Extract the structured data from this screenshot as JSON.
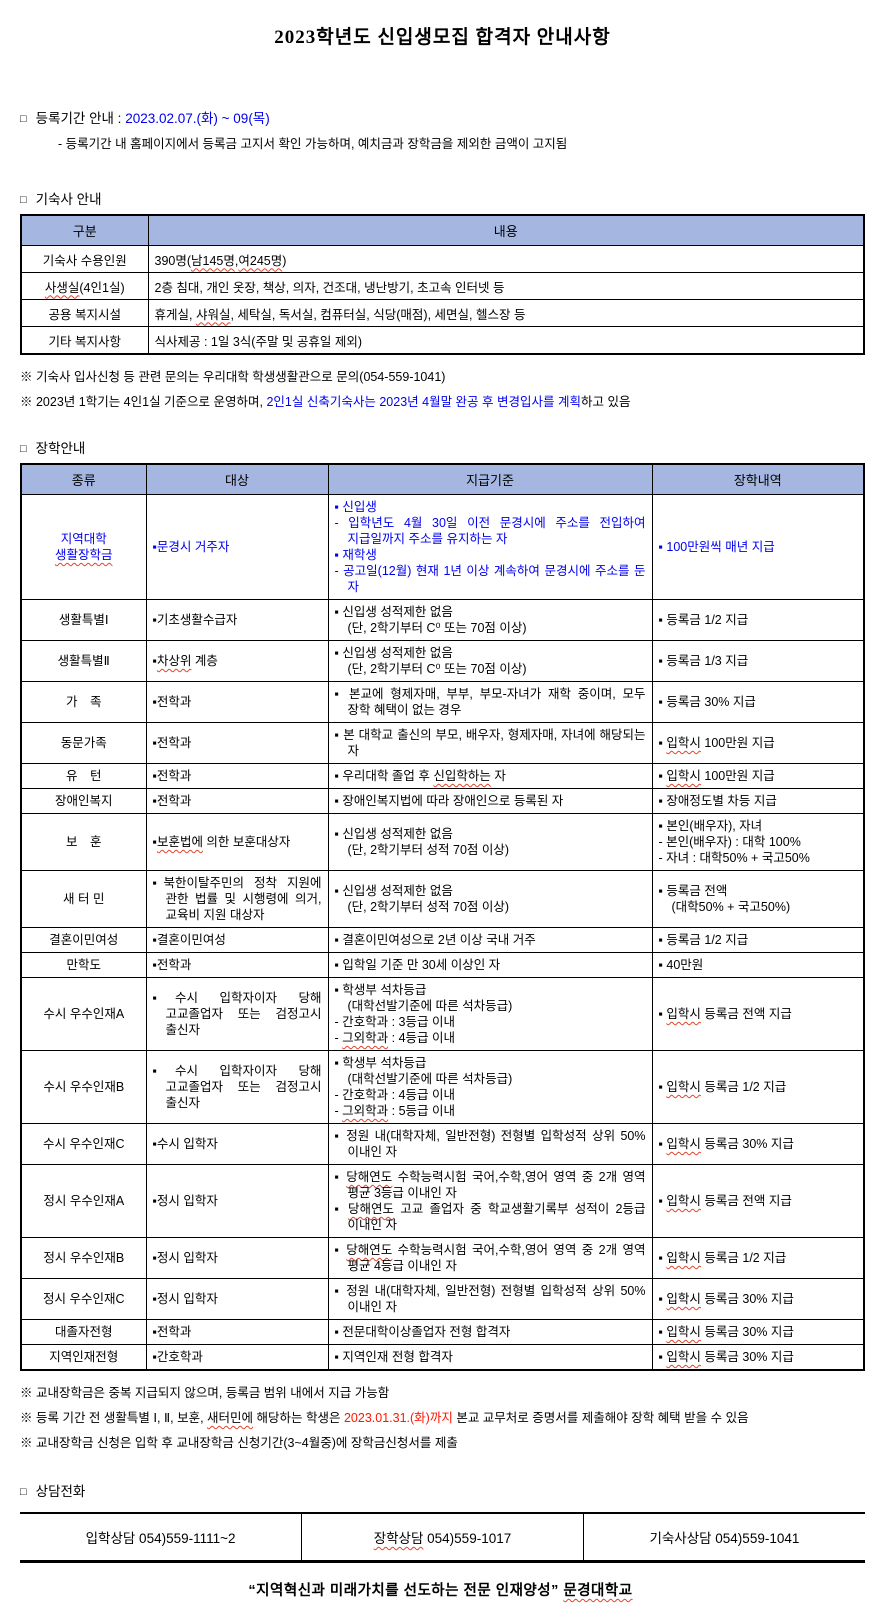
{
  "title": "2023학년도 신입생모집 합격자 안내사항",
  "glyphs": {
    "square": "□"
  },
  "registration": {
    "heading_label": "등록기간 안내 : ",
    "period": "2023.02.07.(화) ~ 09(목)",
    "subnote": "- 등록기간 내 홈페이지에서 등록금 고지서 확인 가능하며, 예치금과 장학금을 제외한 금액이 고지됨"
  },
  "dormitory": {
    "heading": "기숙사 안내",
    "table": {
      "headers": [
        "구분",
        "내용"
      ],
      "rows": [
        [
          "기숙사 수용인원",
          "390명(남145명,여245명)"
        ],
        [
          "사생실(4인1실)",
          "2층 침대, 개인 옷장, 책상, 의자, 건조대, 냉난방기, 초고속 인터넷 등"
        ],
        [
          "공용 복지시설",
          "휴게실, 샤워실, 세탁실, 독서실, 컴퓨터실, 식당(매점), 세면실, 헬스장 등"
        ],
        [
          "기타 복지사항",
          "식사제공 : 1일 3식(주말 및 공휴일 제외)"
        ]
      ]
    },
    "notes": [
      "※ 기숙사 입사신청 등 관련 문의는 우리대학 학생생활관으로 문의(054-559-1041)",
      [
        {
          "t": "※ 2023년 1학기는 4인1실 기준으로 운영하며, "
        },
        {
          "t": "2인1실 신축기숙사는 2023년 4월말 완공 후 변경입사를 계획",
          "c": "blue"
        },
        {
          "t": "하고 있음"
        }
      ]
    ]
  },
  "scholarship": {
    "heading": "장학안내",
    "headers": [
      "종류",
      "대상",
      "지급기준",
      "장학내역"
    ],
    "rows": [
      {
        "kind": [
          "지역대학",
          "생활장학금"
        ],
        "target": [
          "▪문경시 거주자"
        ],
        "criteria": [
          "▪ 신입생",
          "- 입학년도 4월 30일 이전 문경시에 주소를 전입하여 지급일까지 주소를 유지하는 자",
          "▪ 재학생",
          "- 공고일(12월) 현재 1년 이상 계속하여 문경시에 주소를 둔 자"
        ],
        "benefit": [
          "▪  100만원씩 매년 지급"
        ],
        "blue": true
      },
      {
        "kind": [
          "생활특별Ⅰ"
        ],
        "target": [
          "▪기초생활수급자"
        ],
        "criteria": [
          "▪ 신입생 성적제한 없음",
          "(단, 2학기부터 C⁰ 또는 70점 이상)"
        ],
        "benefit": [
          "▪ 등록금 1/2 지급"
        ]
      },
      {
        "kind": [
          "생활특별Ⅱ"
        ],
        "target": [
          "▪차상위 계층"
        ],
        "criteria": [
          "▪ 신입생 성적제한 없음",
          "(단, 2학기부터 C⁰ 또는 70점 이상)"
        ],
        "benefit": [
          "▪ 등록금 1/3 지급"
        ]
      },
      {
        "kind": [
          "가　족"
        ],
        "target": [
          "▪전학과"
        ],
        "criteria": [
          "▪ 본교에 형제자매, 부부, 부모-자녀가 재학 중이며, 모두 장학 혜택이 없는 경우"
        ],
        "benefit": [
          "▪ 등록금 30% 지급"
        ]
      },
      {
        "kind": [
          "동문가족"
        ],
        "target": [
          "▪전학과"
        ],
        "criteria": [
          "▪ 본 대학교 출신의 부모, 배우자, 형제자매, 자녀에 해당되는 자"
        ],
        "benefit": [
          "▪ 입학시 100만원 지급"
        ]
      },
      {
        "kind": [
          "유　턴"
        ],
        "target": [
          "▪전학과"
        ],
        "criteria": [
          "▪ 우리대학 졸업 후 신입학하는 자"
        ],
        "benefit": [
          "▪ 입학시 100만원 지급"
        ]
      },
      {
        "kind": [
          "장애인복지"
        ],
        "target": [
          "▪전학과"
        ],
        "criteria": [
          "▪ 장애인복지법에 따라 장애인으로 등록된 자"
        ],
        "benefit": [
          "▪ 장애정도별 차등 지급"
        ]
      },
      {
        "kind": [
          "보　훈"
        ],
        "target": [
          "▪보훈법에 의한 보훈대상자"
        ],
        "criteria": [
          "▪ 신입생 성적제한 없음",
          "(단, 2학기부터 성적 70점 이상)"
        ],
        "benefit": [
          "▪ 본인(배우자), 자녀",
          "- 본인(배우자) : 대학 100%",
          "- 자녀 : 대학50% + 국고50%"
        ]
      },
      {
        "kind": [
          "새 터 민"
        ],
        "target": [
          "▪북한이탈주민의 정착 지원에 관한 법률 및 시행령에 의거, 교육비 지원 대상자"
        ],
        "criteria": [
          "▪ 신입생 성적제한 없음",
          "(단, 2학기부터 성적 70점 이상)"
        ],
        "benefit": [
          "▪ 등록금 전액",
          "(대학50% + 국고50%)"
        ]
      },
      {
        "kind": [
          "결혼이민여성"
        ],
        "target": [
          "▪결혼이민여성"
        ],
        "criteria": [
          "▪ 결혼이민여성으로 2년 이상 국내 거주"
        ],
        "benefit": [
          "▪ 등록금 1/2 지급"
        ]
      },
      {
        "kind": [
          "만학도"
        ],
        "target": [
          "▪전학과"
        ],
        "criteria": [
          "▪ 입학일 기준 만 30세 이상인 자"
        ],
        "benefit": [
          "▪  40만원"
        ]
      },
      {
        "kind": [
          "수시 우수인재A"
        ],
        "target": [
          "▪수시 입학자이자 당해 고교졸업자 또는 검정고시 출신자"
        ],
        "criteria": [
          "▪ 학생부 석차등급",
          "(대학선발기준에 따른 석차등급)",
          "- 간호학과 : 3등급 이내",
          "- 그외학과 : 4등급 이내"
        ],
        "benefit": [
          "▪ 입학시 등록금 전액 지급"
        ]
      },
      {
        "kind": [
          "수시 우수인재B"
        ],
        "target": [
          "▪수시 입학자이자 당해 고교졸업자 또는 검정고시 출신자"
        ],
        "criteria": [
          "▪ 학생부 석차등급",
          "(대학선발기준에 따른 석차등급)",
          "- 간호학과 : 4등급 이내",
          "- 그외학과 : 5등급 이내"
        ],
        "benefit": [
          "▪ 입학시 등록금 1/2 지급"
        ]
      },
      {
        "kind": [
          "수시 우수인재C"
        ],
        "target": [
          "▪수시 입학자"
        ],
        "criteria": [
          "▪ 정원 내(대학자체, 일반전형) 전형별 입학성적 상위 50% 이내인 자"
        ],
        "benefit": [
          "▪ 입학시 등록금 30% 지급"
        ]
      },
      {
        "kind": [
          "정시 우수인재A"
        ],
        "target": [
          "▪정시 입학자"
        ],
        "criteria": [
          "▪ 당해연도 수학능력시험 국어,수학,영어 영역 중 2개 영역 평균 3등급 이내인 자",
          "▪ 당해연도 고교 졸업자 중 학교생활기록부 성적이 2등급 이내인 자"
        ],
        "benefit": [
          "▪ 입학시 등록금 전액 지급"
        ]
      },
      {
        "kind": [
          "정시 우수인재B"
        ],
        "target": [
          "▪정시 입학자"
        ],
        "criteria": [
          "▪ 당해연도 수학능력시험 국어,수학,영어 영역 중 2개 영역 평균 4등급 이내인 자"
        ],
        "benefit": [
          "▪ 입학시 등록금 1/2 지급"
        ]
      },
      {
        "kind": [
          "정시 우수인재C"
        ],
        "target": [
          "▪정시 입학자"
        ],
        "criteria": [
          "▪ 정원 내(대학자체, 일반전형) 전형별 입학성적 상위 50% 이내인 자"
        ],
        "benefit": [
          "▪ 입학시 등록금 30% 지급"
        ]
      },
      {
        "kind": [
          "대졸자전형"
        ],
        "target": [
          "▪전학과"
        ],
        "criteria": [
          "▪ 전문대학이상졸업자 전형 합격자"
        ],
        "benefit": [
          "▪ 입학시 등록금 30% 지급"
        ]
      },
      {
        "kind": [
          "지역인재전형"
        ],
        "target": [
          "▪간호학과"
        ],
        "criteria": [
          "▪ 지역인재 전형 합격자"
        ],
        "benefit": [
          "▪ 입학시 등록금 30% 지급"
        ]
      }
    ],
    "notes": [
      "※ 교내장학금은 중복 지급되지 않으며, 등록금 범위 내에서 지급 가능함",
      [
        {
          "t": "※ 등록 기간 전 생활특별 Ⅰ, Ⅱ, 보훈, 새터민에 해당하는 학생은 "
        },
        {
          "t": "2023.01.31.(화)까지",
          "c": "red"
        },
        {
          "t": " 본교 교무처로 증명서를 제출해야 장학 혜택 받을 수 있음"
        }
      ],
      "※ 교내장학금 신청은 입학 후 교내장학금 신청기간(3~4월중)에 장학금신청서를 제출"
    ]
  },
  "phone": {
    "heading": "상담전화",
    "cells": [
      "입학상담 054)559-1111~2",
      "장학상담 054)559-1017",
      "기숙사상담 054)559-1041"
    ]
  },
  "footer": "“지역혁신과 미래가치를 선도하는 전문 인재양성” 문경대학교",
  "colors": {
    "header_bg": "#a5b7e0",
    "accent_blue": "#0000ee",
    "alert_red": "#ff1400"
  },
  "spellcheck_words": [
    "생활장학금",
    "남145명",
    "여245명",
    "사생실",
    "샤워실",
    "입학시",
    "신입학하는",
    "그외학과",
    "당해연도",
    "보훈법에",
    "차상위",
    "새터민에",
    "장학상담",
    "문경대학교"
  ]
}
